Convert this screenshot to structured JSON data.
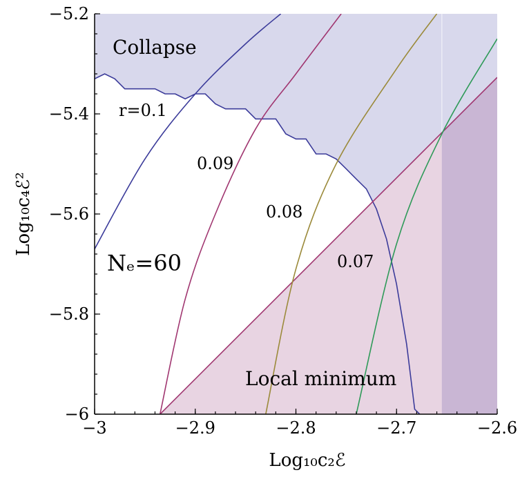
{
  "chart_data": {
    "type": "line",
    "xlabel": "Log₁₀c₂ℰ",
    "ylabel": "Log₁₀c₄ℰ²",
    "xlim": [
      -3.0,
      -2.6
    ],
    "ylim": [
      -6.0,
      -5.2
    ],
    "x_ticks": [
      "-3",
      "-2.9",
      "-2.8",
      "-2.7",
      "-2.6"
    ],
    "y_ticks": [
      "-6",
      "-5.8",
      "-5.6",
      "-5.4",
      "-5.2"
    ],
    "x_tick_values": [
      -3.0,
      -2.9,
      -2.8,
      -2.7,
      -2.6
    ],
    "y_tick_values": [
      -6.0,
      -5.8,
      -5.6,
      -5.4,
      -5.2
    ],
    "regions": [
      {
        "name": "Collapse",
        "color": "#d8d8ec",
        "boundary": [
          [
            -3.0,
            -5.33
          ],
          [
            -2.99,
            -5.32
          ],
          [
            -2.98,
            -5.33
          ],
          [
            -2.97,
            -5.35
          ],
          [
            -2.96,
            -5.35
          ],
          [
            -2.95,
            -5.35
          ],
          [
            -2.94,
            -5.35
          ],
          [
            -2.93,
            -5.36
          ],
          [
            -2.92,
            -5.36
          ],
          [
            -2.91,
            -5.37
          ],
          [
            -2.9,
            -5.36
          ],
          [
            -2.89,
            -5.36
          ],
          [
            -2.88,
            -5.38
          ],
          [
            -2.87,
            -5.39
          ],
          [
            -2.86,
            -5.39
          ],
          [
            -2.85,
            -5.39
          ],
          [
            -2.84,
            -5.41
          ],
          [
            -2.83,
            -5.41
          ],
          [
            -2.82,
            -5.41
          ],
          [
            -2.81,
            -5.44
          ],
          [
            -2.8,
            -5.45
          ],
          [
            -2.79,
            -5.45
          ],
          [
            -2.78,
            -5.48
          ],
          [
            -2.77,
            -5.48
          ],
          [
            -2.76,
            -5.49
          ],
          [
            -2.75,
            -5.51
          ],
          [
            -2.74,
            -5.53
          ],
          [
            -2.73,
            -5.55
          ],
          [
            -2.72,
            -5.59
          ],
          [
            -2.71,
            -5.65
          ],
          [
            -2.7,
            -5.74
          ],
          [
            -2.69,
            -5.86
          ],
          [
            -2.682,
            -5.99
          ],
          [
            -2.677,
            -6.0
          ]
        ]
      },
      {
        "name": "Local minimum",
        "color": "#e8d4e2",
        "line": [
          [
            -2.935,
            -6.0
          ],
          [
            -2.6,
            -5.327
          ]
        ]
      },
      {
        "name": "",
        "color": "#c9b6d4",
        "x_from": -2.655
      }
    ],
    "series": [
      {
        "name": "r=0.1",
        "color": "#3b3b9a",
        "points": [
          [
            -3.0,
            -5.67
          ],
          [
            -2.95,
            -5.49
          ],
          [
            -2.9,
            -5.36
          ],
          [
            -2.85,
            -5.26
          ],
          [
            -2.815,
            -5.2
          ]
        ]
      },
      {
        "name": "0.09",
        "color": "#a03670",
        "points": [
          [
            -2.935,
            -6.0
          ],
          [
            -2.91,
            -5.77
          ],
          [
            -2.88,
            -5.6
          ],
          [
            -2.84,
            -5.43
          ],
          [
            -2.8,
            -5.32
          ],
          [
            -2.755,
            -5.2
          ]
        ]
      },
      {
        "name": "0.08",
        "color": "#9b8a3a",
        "points": [
          [
            -2.83,
            -6.0
          ],
          [
            -2.8,
            -5.71
          ],
          [
            -2.76,
            -5.5
          ],
          [
            -2.7,
            -5.31
          ],
          [
            -2.66,
            -5.2
          ]
        ]
      },
      {
        "name": "0.07",
        "color": "#2e9a58",
        "points": [
          [
            -2.74,
            -6.0
          ],
          [
            -2.7,
            -5.66
          ],
          [
            -2.655,
            -5.44
          ],
          [
            -2.6,
            -5.25
          ]
        ]
      }
    ],
    "annotations": {
      "collapse": "Collapse",
      "local_minimum": "Local minimum",
      "ne": "Nₑ=60",
      "r01": "r=0.1",
      "r009": "0.09",
      "r008": "0.08",
      "r007": "0.07"
    }
  }
}
